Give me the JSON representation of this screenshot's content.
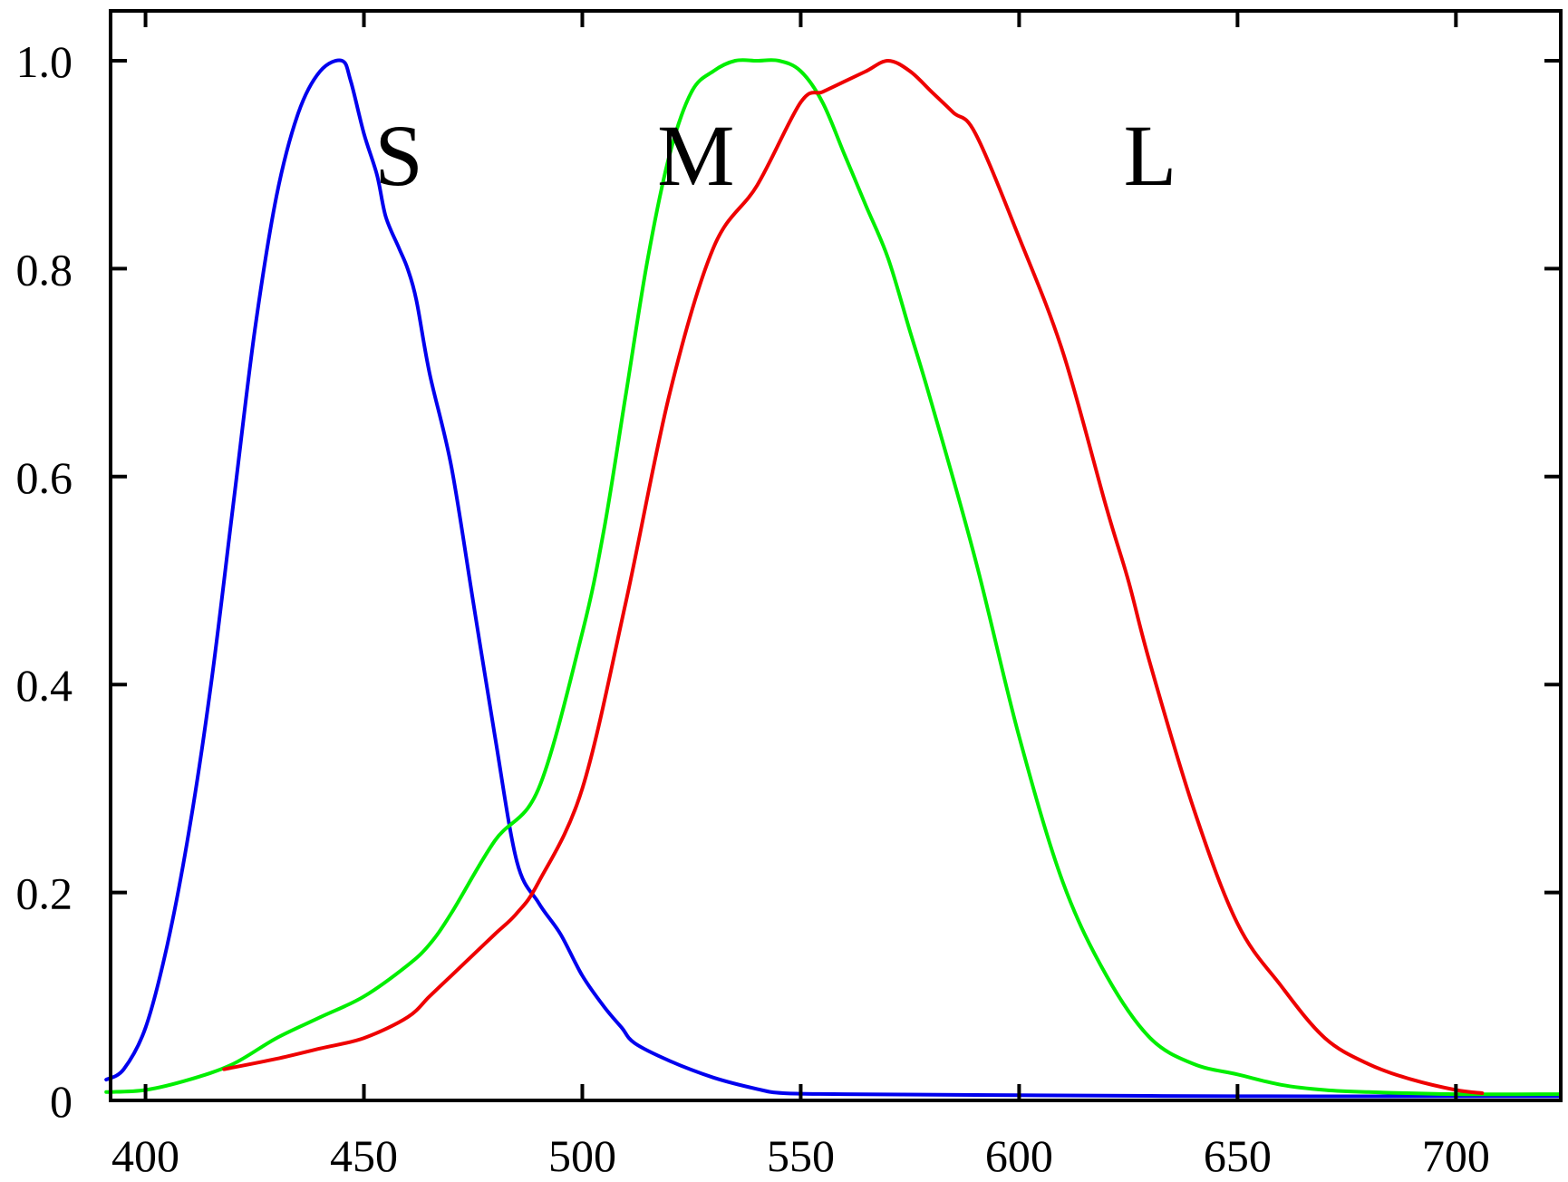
{
  "chart_data": {
    "type": "line",
    "title": "",
    "xlabel": "",
    "ylabel": "",
    "xlim": [
      392,
      724
    ],
    "ylim": [
      0,
      1.05
    ],
    "grid": false,
    "legend": "none",
    "x_ticks": [
      {
        "value": 400,
        "label": "400"
      },
      {
        "value": 450,
        "label": "450"
      },
      {
        "value": 500,
        "label": "500"
      },
      {
        "value": 550,
        "label": "550"
      },
      {
        "value": 600,
        "label": "600"
      },
      {
        "value": 650,
        "label": "650"
      },
      {
        "value": 700,
        "label": "700"
      }
    ],
    "y_ticks": [
      {
        "value": 0,
        "label": "0"
      },
      {
        "value": 0.2,
        "label": "0.2"
      },
      {
        "value": 0.4,
        "label": "0.4"
      },
      {
        "value": 0.6,
        "label": "0.6"
      },
      {
        "value": 0.8,
        "label": "0.8"
      },
      {
        "value": 1.0,
        "label": "1.0"
      }
    ],
    "series": [
      {
        "label": "S",
        "label_at": {
          "x": 458,
          "y": 0.91
        },
        "color": "#0000ee",
        "x": [
          391,
          395,
          400,
          405,
          410,
          415,
          420,
          425,
          430,
          435,
          440,
          445,
          447,
          450,
          453,
          455,
          458,
          460,
          462,
          465,
          470,
          475,
          480,
          485,
          490,
          495,
          500,
          505,
          509,
          512,
          520,
          530,
          540,
          546,
          560,
          600,
          650,
          700,
          724
        ],
        "y": [
          0.02,
          0.03,
          0.07,
          0.15,
          0.26,
          0.4,
          0.57,
          0.74,
          0.87,
          0.95,
          0.99,
          1.0,
          0.98,
          0.93,
          0.89,
          0.85,
          0.82,
          0.8,
          0.77,
          0.7,
          0.61,
          0.48,
          0.35,
          0.23,
          0.19,
          0.16,
          0.12,
          0.09,
          0.07,
          0.055,
          0.038,
          0.022,
          0.011,
          0.007,
          0.006,
          0.005,
          0.004,
          0.004,
          0.004
        ]
      },
      {
        "label": "M",
        "label_at": {
          "x": 526,
          "y": 0.91
        },
        "color": "#00ee00",
        "x": [
          391,
          400,
          410,
          420,
          430,
          440,
          450,
          460,
          465,
          470,
          480,
          490,
          500,
          505,
          510,
          515,
          520,
          525,
          530,
          535,
          540,
          545,
          550,
          555,
          560,
          565,
          570,
          575,
          580,
          590,
          600,
          610,
          620,
          630,
          640,
          650,
          660,
          670,
          680,
          700,
          724
        ],
        "y": [
          0.008,
          0.01,
          0.02,
          0.035,
          0.06,
          0.08,
          0.1,
          0.13,
          0.15,
          0.18,
          0.25,
          0.3,
          0.45,
          0.55,
          0.68,
          0.81,
          0.91,
          0.97,
          0.99,
          1.0,
          1.0,
          1.0,
          0.99,
          0.96,
          0.91,
          0.86,
          0.81,
          0.74,
          0.67,
          0.52,
          0.35,
          0.21,
          0.12,
          0.06,
          0.035,
          0.025,
          0.015,
          0.01,
          0.008,
          0.006,
          0.006
        ]
      },
      {
        "label": "L",
        "label_at": {
          "x": 630,
          "y": 0.91
        },
        "color": "#ee0000",
        "x": [
          418,
          430,
          440,
          450,
          460,
          465,
          470,
          475,
          480,
          485,
          490,
          500,
          510,
          520,
          530,
          540,
          550,
          555,
          560,
          565,
          570,
          575,
          580,
          585,
          590,
          600,
          610,
          620,
          625,
          630,
          640,
          650,
          660,
          670,
          680,
          690,
          700,
          706
        ],
        "y": [
          0.03,
          0.04,
          0.05,
          0.06,
          0.08,
          0.1,
          0.12,
          0.14,
          0.16,
          0.18,
          0.21,
          0.3,
          0.48,
          0.68,
          0.82,
          0.88,
          0.96,
          0.97,
          0.98,
          0.99,
          1.0,
          0.99,
          0.97,
          0.95,
          0.93,
          0.83,
          0.72,
          0.57,
          0.5,
          0.42,
          0.28,
          0.17,
          0.11,
          0.06,
          0.035,
          0.02,
          0.01,
          0.007
        ]
      }
    ]
  }
}
